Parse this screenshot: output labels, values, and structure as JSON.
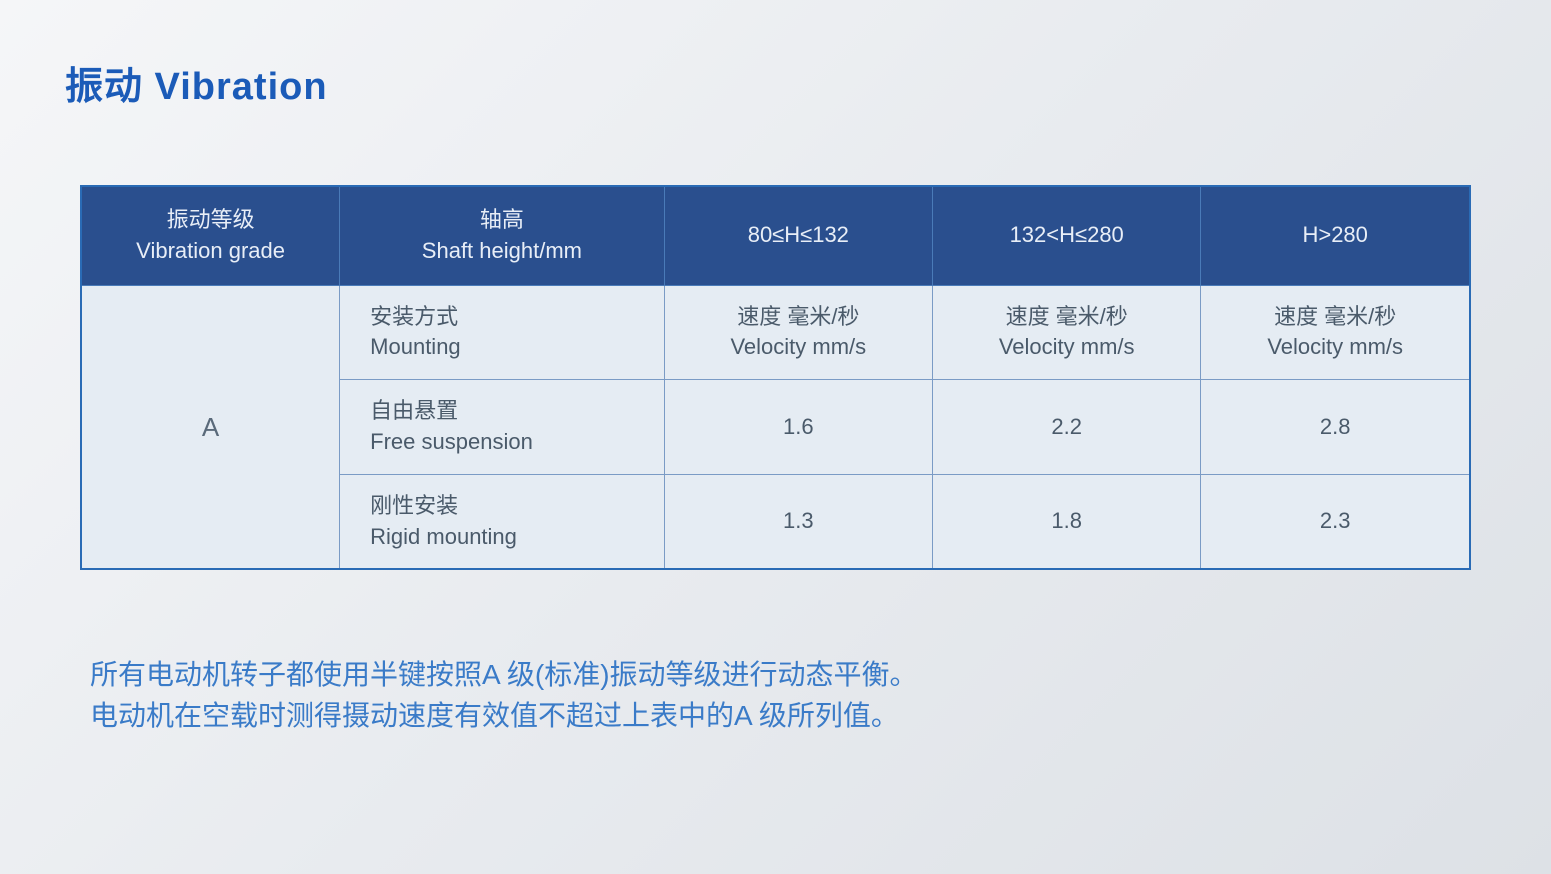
{
  "title": "振动  Vibration",
  "table": {
    "headers": [
      "振动等级\nVibration grade",
      "轴高\nShaft height/mm",
      "80≤H≤132",
      "132<H≤280",
      "H>280"
    ],
    "grade": "A",
    "rows": [
      {
        "label": "安装方式\nMounting",
        "c1": "速度 毫米/秒\nVelocity mm/s",
        "c2": "速度 毫米/秒\nVelocity mm/s",
        "c3": "速度 毫米/秒\nVelocity mm/s"
      },
      {
        "label": "自由悬置\nFree suspension",
        "c1": "1.6",
        "c2": "2.2",
        "c3": "2.8"
      },
      {
        "label": "刚性安装\nRigid mounting",
        "c1": "1.3",
        "c2": "1.8",
        "c3": "2.3"
      }
    ]
  },
  "notes": {
    "line1": "所有电动机转子都使用半键按照A 级(标准)振动等级进行动态平衡。",
    "line2": "电动机在空载时测得摄动速度有效值不超过上表中的A 级所列值。"
  },
  "colors": {
    "title": "#1b5bb8",
    "header_bg": "#2a4f8e",
    "header_text": "#e8eef7",
    "cell_bg": "#e5ecf3",
    "cell_text": "#4a5a6a",
    "border": "#2a6bb5",
    "notes_text": "#3a7bc8",
    "page_bg_start": "#f5f6f8",
    "page_bg_end": "#dde1e6"
  }
}
